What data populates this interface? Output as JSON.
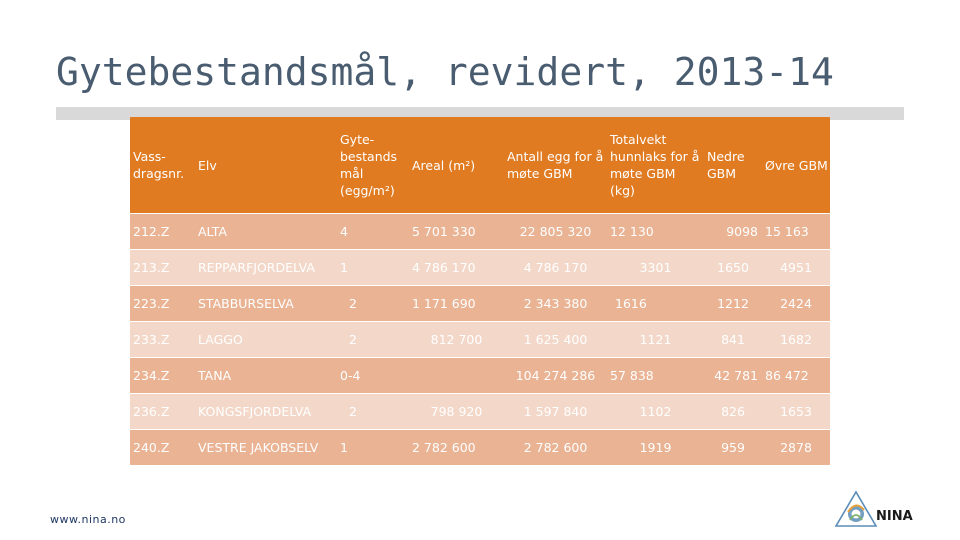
{
  "title": "Gytebestandsmål, revidert, 2013-14",
  "footer": "www.nina.no",
  "logo_text": "NINA",
  "colors": {
    "header": "#e07b22",
    "row_odd": "#e9b394",
    "row_even": "#f3d8c9",
    "title": "#4a5c70"
  },
  "table": {
    "headers": [
      "Vass-dragsnr.",
      "Elv",
      "Gyte-bestands mål (egg/m²)",
      "Areal (m²)",
      "Antall egg for å møte GBM",
      "Totalvekt hunnlaks for å møte GBM (kg)",
      "Nedre GBM",
      "Øvre GBM"
    ],
    "rows": [
      [
        "212.Z",
        "ALTA",
        "4",
        "5 701 330",
        "22 805 320",
        "12 130",
        "9098",
        "15 163"
      ],
      [
        "213.Z",
        "REPPARFJORDELVA",
        "1",
        "4 786 170",
        "4 786 170",
        "3301",
        "1650",
        "4951"
      ],
      [
        "223.Z",
        "STABBURSELVA",
        "2",
        "1 171 690",
        "2 343 380",
        "1616",
        "1212",
        "2424"
      ],
      [
        "233.Z",
        "LAGGO",
        "2",
        "812 700",
        "1 625 400",
        "1121",
        "841",
        "1682"
      ],
      [
        "234.Z",
        "TANA",
        "0-4",
        "",
        "104 274 286",
        "57 838",
        "42 781",
        "86 472"
      ],
      [
        "236.Z",
        "KONGSFJORDELVA",
        "2",
        "798 920",
        "1 597 840",
        "1102",
        "826",
        "1653"
      ],
      [
        "240.Z",
        "VESTRE JAKOBSELV",
        "1",
        "2 782 600",
        "2 782 600",
        "1919",
        "959",
        "2878"
      ]
    ]
  }
}
